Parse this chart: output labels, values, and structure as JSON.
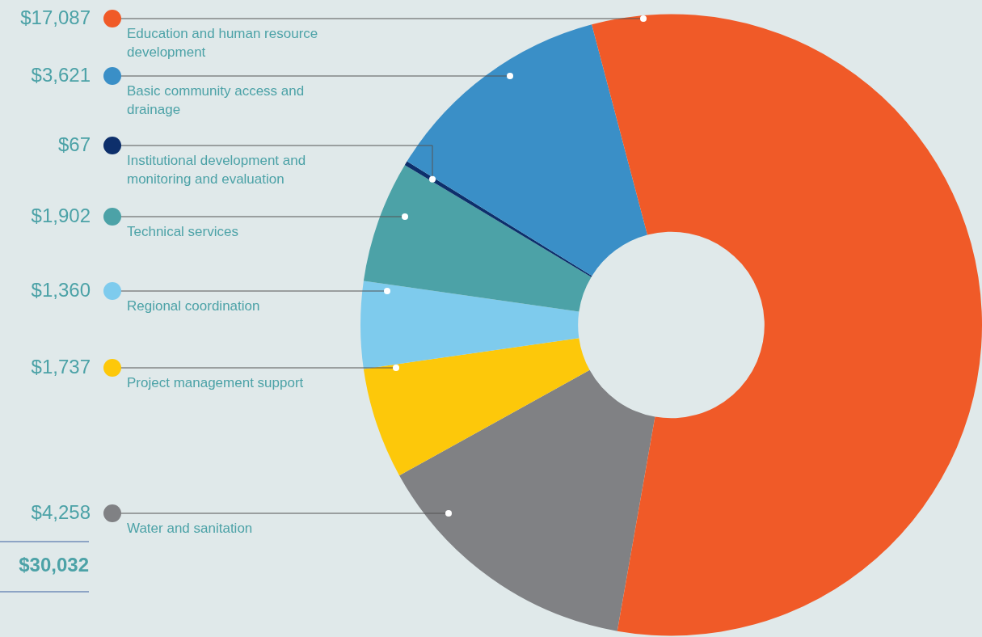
{
  "chart_data": {
    "type": "donut",
    "categories": [
      "Education and human resource development",
      "Basic community access and drainage",
      "Institutional development and monitoring and evaluation",
      "Technical services",
      "Regional coordination",
      "Project management support",
      "Water and sanitation"
    ],
    "values": [
      17087,
      3621,
      67,
      1902,
      1360,
      1737,
      4258
    ],
    "colors": [
      "#f05a28",
      "#3a8fc7",
      "#0d2f6b",
      "#4ca2a7",
      "#7ecbed",
      "#fdc80a",
      "#808184"
    ],
    "value_labels": [
      "$17,087",
      "$3,621",
      "$67",
      "$1,902",
      "$1,360",
      "$1,737",
      "$4,258"
    ],
    "annotations": [
      "$30,032"
    ]
  }
}
